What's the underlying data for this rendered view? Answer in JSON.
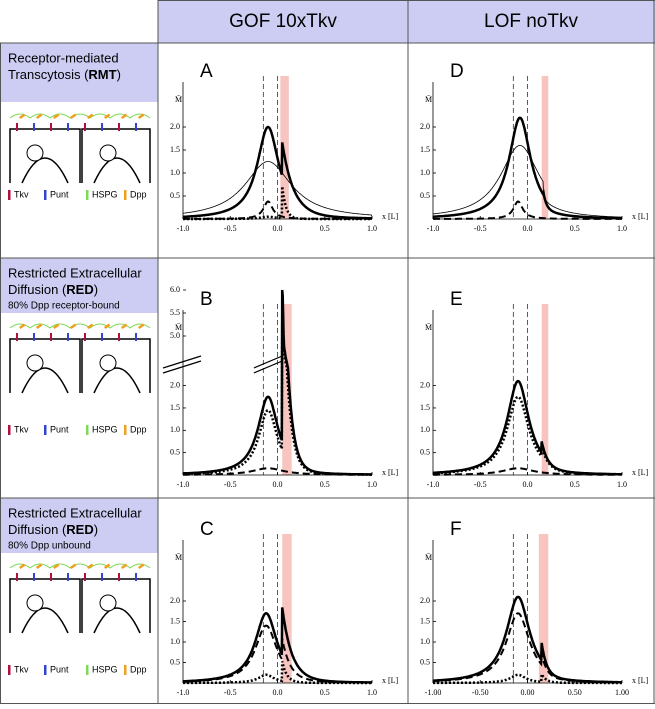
{
  "header": {
    "columns": [
      "GOF 10xTkv",
      "LOF noTkv"
    ]
  },
  "rows": [
    {
      "line1": "Receptor-mediated",
      "line2_pre": "Transcytosis (",
      "bold": "RMT",
      "line2_post": ")"
    },
    {
      "line1": "Restricted Extracellular",
      "line2_pre": "Diffusion (",
      "bold": "RED",
      "line2_post": ")",
      "note": "80% Dpp receptor-bound"
    },
    {
      "line1": "Restricted Extracellular",
      "line2_pre": "Diffusion (",
      "bold": "RED",
      "line2_post": ")",
      "note": "80% Dpp unbound"
    }
  ],
  "legend": [
    "Tkv",
    "Punt",
    "HSPG",
    "Dpp"
  ],
  "panels": [
    {
      "letter": "A",
      "x_label": "x [L]",
      "y_label": "M̄",
      "xticks": [
        {
          "value": -1,
          "label": "-1.0"
        },
        -0.5,
        {
          "value": 0,
          "label": "0.0"
        },
        0.5,
        {
          "value": 1,
          "label": "1.0"
        }
      ],
      "yticks": [
        0.5,
        {
          "value": 1,
          "label": "1.0"
        },
        1.5,
        {
          "value": 2,
          "label": "2.0"
        }
      ]
    },
    {
      "letter": "B",
      "x_label": "x [L]",
      "y_label": "M̄",
      "xticks": [
        {
          "value": -1,
          "label": "-1.0"
        },
        -0.5,
        {
          "value": 0,
          "label": "0.0"
        },
        0.5,
        {
          "value": 1,
          "label": "1.0"
        }
      ],
      "yticks": [
        0.5,
        {
          "value": 1,
          "label": "1.0"
        },
        1.5,
        {
          "value": 2,
          "label": "2.0"
        },
        {
          "value": 5,
          "label": "5.0"
        },
        5.5,
        {
          "value": 6,
          "label": "6.0"
        }
      ]
    },
    {
      "letter": "C",
      "x_label": "x [L]",
      "y_label": "M̄",
      "xticks": [
        {
          "value": -1,
          "label": "-1.0"
        },
        -0.5,
        {
          "value": 0,
          "label": "0.0"
        },
        0.5,
        {
          "value": 1,
          "label": "1.0"
        }
      ],
      "yticks": [
        0.5,
        {
          "value": 1,
          "label": "1.0"
        },
        1.5,
        {
          "value": 2,
          "label": "2.0"
        }
      ]
    },
    {
      "letter": "D",
      "x_label": "x [L]",
      "y_label": "M̄",
      "xticks": [
        {
          "value": -1,
          "label": "-1.0"
        },
        -0.5,
        {
          "value": 0,
          "label": "0.0"
        },
        0.5,
        {
          "value": 1,
          "label": "1.0"
        }
      ],
      "yticks": [
        0.5,
        {
          "value": 1,
          "label": "1.0"
        },
        1.5,
        {
          "value": 2,
          "label": "2.0"
        }
      ]
    },
    {
      "letter": "E",
      "x_label": "x [L]",
      "y_label": "M̄",
      "xticks": [
        {
          "value": -1,
          "label": "-1.0"
        },
        -0.5,
        {
          "value": 0,
          "label": "0.0"
        },
        0.5,
        {
          "value": 1,
          "label": "1.0"
        }
      ],
      "yticks": [
        0.5,
        {
          "value": 1,
          "label": "1.0"
        },
        1.5,
        {
          "value": 2,
          "label": "2.0"
        }
      ]
    },
    {
      "letter": "F",
      "x_label": "x [L]",
      "y_label": "M̄",
      "xticks": [
        {
          "value": -1,
          "label": "-1.00"
        },
        {
          "value": -0.5,
          "label": "-0.50"
        },
        {
          "value": 0,
          "label": "0.00"
        },
        {
          "value": 0.5,
          "label": "0.50"
        },
        {
          "value": 1,
          "label": "1.00"
        }
      ],
      "yticks": [
        0.5,
        {
          "value": 1,
          "label": "1.0"
        },
        1.5,
        {
          "value": 2,
          "label": "2.0"
        }
      ]
    }
  ]
}
